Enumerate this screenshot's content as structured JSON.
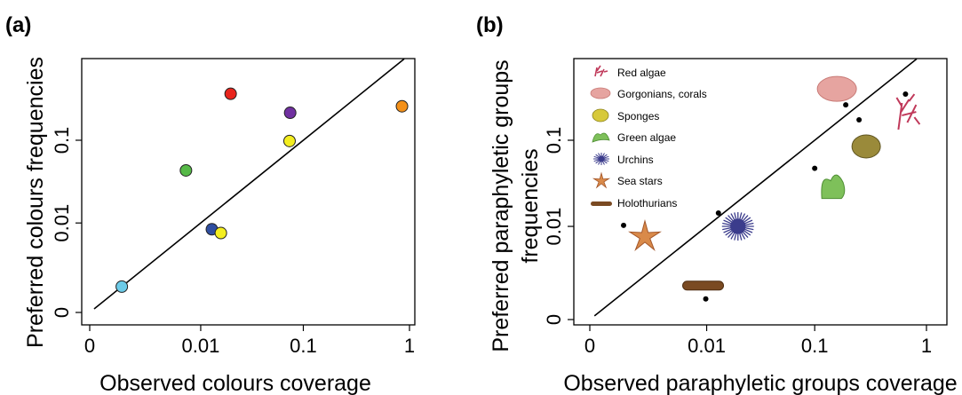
{
  "chart_data": [
    {
      "type": "scatter",
      "panel_label": "(a)",
      "xlabel": "Observed colours coverage",
      "ylabel": "Preferred colours frequencies",
      "x_ticks": [
        "0",
        "0.01",
        "0.1",
        "1"
      ],
      "y_ticks": [
        "0",
        "0.01",
        "0.1"
      ],
      "grid": false,
      "points": [
        {
          "color": "#e8241c",
          "x": 0.02,
          "y": 0.35
        },
        {
          "color": "#7030a0",
          "x": 0.075,
          "y": 0.21
        },
        {
          "color": "#f39019",
          "x": 0.85,
          "y": 0.25
        },
        {
          "color": "#f4ee1f",
          "x": 0.074,
          "y": 0.098
        },
        {
          "color": "#56b947",
          "x": 0.007,
          "y": 0.044
        },
        {
          "color": "#2f4ea0",
          "x": 0.013,
          "y": 0.0083
        },
        {
          "color": "#f4ee1f",
          "x": 0.016,
          "y": 0.0074
        },
        {
          "color": "#6ccbe8",
          "x": 0.001,
          "y": 0.001
        }
      ],
      "reference_line": "1:1"
    },
    {
      "type": "scatter",
      "panel_label": "(b)",
      "xlabel": "Observed paraphyletic groups coverage",
      "ylabel_line1": "Preferred paraphyletic groups",
      "ylabel_line2": "frequencies",
      "x_ticks": [
        "0",
        "0.01",
        "0.1",
        "1"
      ],
      "y_ticks": [
        "0",
        "0.01",
        "0.1"
      ],
      "grid": false,
      "legend_position": "top-left",
      "legend": [
        {
          "label": "Red algae",
          "icon": "red-algae-icon"
        },
        {
          "label": "Gorgonians, corals",
          "icon": "coral-icon"
        },
        {
          "label": "Sponges",
          "icon": "sponge-icon"
        },
        {
          "label": "Green algae",
          "icon": "green-algae-icon"
        },
        {
          "label": "Urchins",
          "icon": "urchin-icon"
        },
        {
          "label": "Sea stars",
          "icon": "sea-star-icon"
        },
        {
          "label": "Holothurians",
          "icon": "holothurian-icon"
        }
      ],
      "points": [
        {
          "group": "Red algae",
          "x": 0.65,
          "y": 0.33
        },
        {
          "group": "Gorgonians, corals",
          "x": 0.19,
          "y": 0.25
        },
        {
          "group": "Sponges",
          "x": 0.25,
          "y": 0.17
        },
        {
          "group": "Green algae",
          "x": 0.1,
          "y": 0.048
        },
        {
          "group": "Urchins",
          "x": 0.013,
          "y": 0.0145
        },
        {
          "group": "Sea stars",
          "x": 0.001,
          "y": 0.0103
        },
        {
          "group": "Holothurians",
          "x": 0.0098,
          "y": 0.0007
        }
      ],
      "reference_line": "1:1"
    }
  ]
}
